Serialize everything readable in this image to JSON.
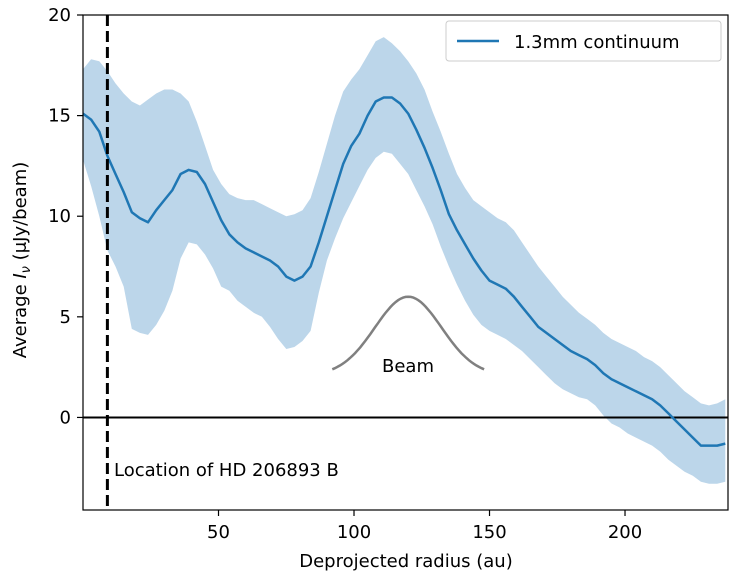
{
  "chart_data": {
    "type": "line",
    "xlabel": "Deprojected radius (au)",
    "ylabel_prefix": "Average ",
    "ylabel_symbol": "I",
    "ylabel_subscript": "ν",
    "ylabel_suffix": " (μJy/beam)",
    "xlim": [
      0,
      238
    ],
    "ylim": [
      -4.6,
      20
    ],
    "xticks": [
      50,
      100,
      150,
      200
    ],
    "yticks": [
      0,
      5,
      10,
      15,
      20
    ],
    "legend": {
      "position": "top-right",
      "entries": [
        "1.3mm continuum"
      ]
    },
    "series": [
      {
        "name": "1.3mm continuum",
        "color": "#1f77b4",
        "band_color": "#bcd6ea",
        "x": [
          0,
          3,
          6,
          9,
          12,
          15,
          18,
          21,
          24,
          27,
          30,
          33,
          36,
          39,
          42,
          45,
          48,
          51,
          54,
          57,
          60,
          63,
          66,
          69,
          72,
          75,
          78,
          81,
          84,
          87,
          90,
          93,
          96,
          99,
          102,
          105,
          108,
          111,
          114,
          117,
          120,
          123,
          126,
          129,
          132,
          135,
          138,
          141,
          144,
          147,
          150,
          153,
          156,
          159,
          162,
          165,
          168,
          171,
          174,
          177,
          180,
          183,
          186,
          189,
          192,
          195,
          198,
          201,
          204,
          207,
          210,
          213,
          216,
          219,
          222,
          225,
          228,
          231,
          234,
          237
        ],
        "y": [
          15.1,
          14.8,
          14.2,
          13.0,
          12.1,
          11.2,
          10.2,
          9.9,
          9.7,
          10.3,
          10.8,
          11.3,
          12.1,
          12.3,
          12.2,
          11.6,
          10.7,
          9.8,
          9.1,
          8.7,
          8.4,
          8.2,
          8.0,
          7.8,
          7.5,
          7.0,
          6.8,
          7.0,
          7.5,
          8.7,
          10.0,
          11.3,
          12.6,
          13.5,
          14.1,
          15.0,
          15.7,
          15.9,
          15.9,
          15.6,
          15.1,
          14.3,
          13.4,
          12.4,
          11.3,
          10.1,
          9.3,
          8.6,
          7.9,
          7.3,
          6.8,
          6.6,
          6.4,
          6.0,
          5.5,
          5.0,
          4.5,
          4.2,
          3.9,
          3.6,
          3.3,
          3.1,
          2.9,
          2.6,
          2.2,
          1.9,
          1.7,
          1.5,
          1.3,
          1.1,
          0.9,
          0.6,
          0.2,
          -0.2,
          -0.6,
          -1.0,
          -1.4,
          -1.4,
          -1.4,
          -1.3
        ],
        "lower": [
          12.8,
          11.5,
          10.0,
          8.3,
          7.5,
          6.5,
          4.4,
          4.2,
          4.1,
          4.6,
          5.3,
          6.3,
          7.9,
          8.7,
          8.6,
          8.1,
          7.4,
          6.5,
          6.3,
          5.8,
          5.5,
          5.2,
          5.0,
          4.5,
          3.9,
          3.4,
          3.5,
          3.8,
          4.3,
          6.2,
          7.8,
          8.9,
          9.9,
          10.7,
          11.5,
          12.3,
          12.9,
          13.2,
          13.1,
          12.6,
          12.1,
          11.3,
          10.5,
          9.6,
          8.5,
          7.5,
          6.6,
          5.8,
          5.1,
          4.6,
          4.3,
          4.1,
          3.9,
          3.6,
          3.3,
          2.9,
          2.5,
          2.1,
          1.7,
          1.4,
          1.2,
          1.0,
          0.9,
          0.6,
          0.1,
          -0.3,
          -0.5,
          -0.8,
          -1.0,
          -1.2,
          -1.4,
          -1.7,
          -2.1,
          -2.4,
          -2.7,
          -2.9,
          -3.2,
          -3.3,
          -3.3,
          -3.2
        ],
        "upper": [
          17.3,
          17.8,
          17.7,
          17.2,
          16.6,
          16.1,
          15.7,
          15.5,
          15.8,
          16.1,
          16.3,
          16.3,
          16.1,
          15.7,
          14.7,
          13.5,
          12.3,
          11.6,
          11.1,
          10.9,
          10.8,
          10.8,
          10.6,
          10.4,
          10.2,
          10.0,
          10.1,
          10.3,
          10.9,
          12.2,
          13.6,
          15.0,
          16.2,
          16.8,
          17.3,
          18.0,
          18.7,
          18.9,
          18.6,
          18.2,
          17.7,
          17.1,
          16.3,
          15.2,
          14.2,
          13.1,
          12.1,
          11.4,
          10.8,
          10.5,
          10.2,
          9.9,
          9.7,
          9.3,
          8.7,
          8.1,
          7.5,
          7.0,
          6.5,
          6.0,
          5.6,
          5.2,
          4.9,
          4.6,
          4.2,
          3.9,
          3.7,
          3.5,
          3.3,
          3.0,
          2.8,
          2.5,
          2.1,
          1.7,
          1.3,
          1.0,
          0.7,
          0.6,
          0.7,
          0.9
        ]
      }
    ],
    "annotations": {
      "vline_x": 9,
      "vline_label": "Location of HD 206893 B",
      "hline_y": 0,
      "beam_label": "Beam",
      "beam": {
        "center": 120,
        "fwhm": 29,
        "peak": 6.0,
        "base": 2.1,
        "x_range": [
          92,
          148
        ]
      }
    }
  }
}
